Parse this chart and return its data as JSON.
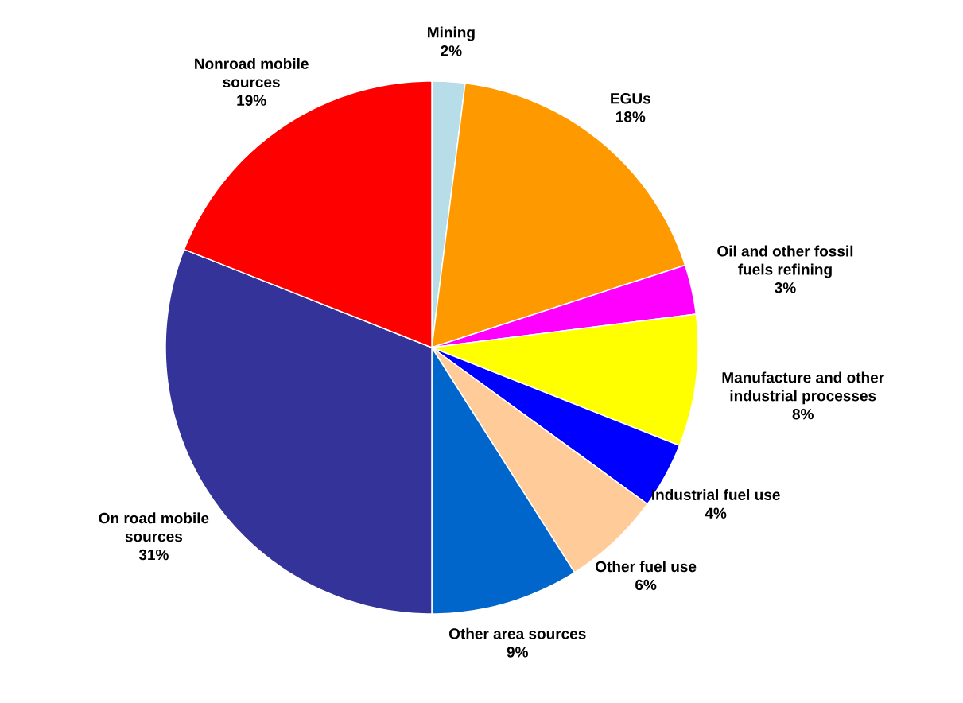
{
  "chart_data": {
    "type": "pie",
    "categories": [
      "Mining",
      "EGUs",
      "Oil and other fossil fuels refining",
      "Manufacture and other industrial processes",
      "Industrial fuel use",
      "Other fuel use",
      "Other area sources",
      "On road mobile sources",
      "Nonroad mobile sources"
    ],
    "values": [
      2,
      18,
      3,
      8,
      4,
      6,
      9,
      31,
      19
    ],
    "value_labels": [
      "2%",
      "18%",
      "3%",
      "8%",
      "4%",
      "6%",
      "9%",
      "31%",
      "19%"
    ],
    "colors": [
      "#b7dde8",
      "#ff9900",
      "#ff00ff",
      "#ffff00",
      "#0000ff",
      "#ffcc99",
      "#0066cc",
      "#333399",
      "#ff0000"
    ]
  }
}
